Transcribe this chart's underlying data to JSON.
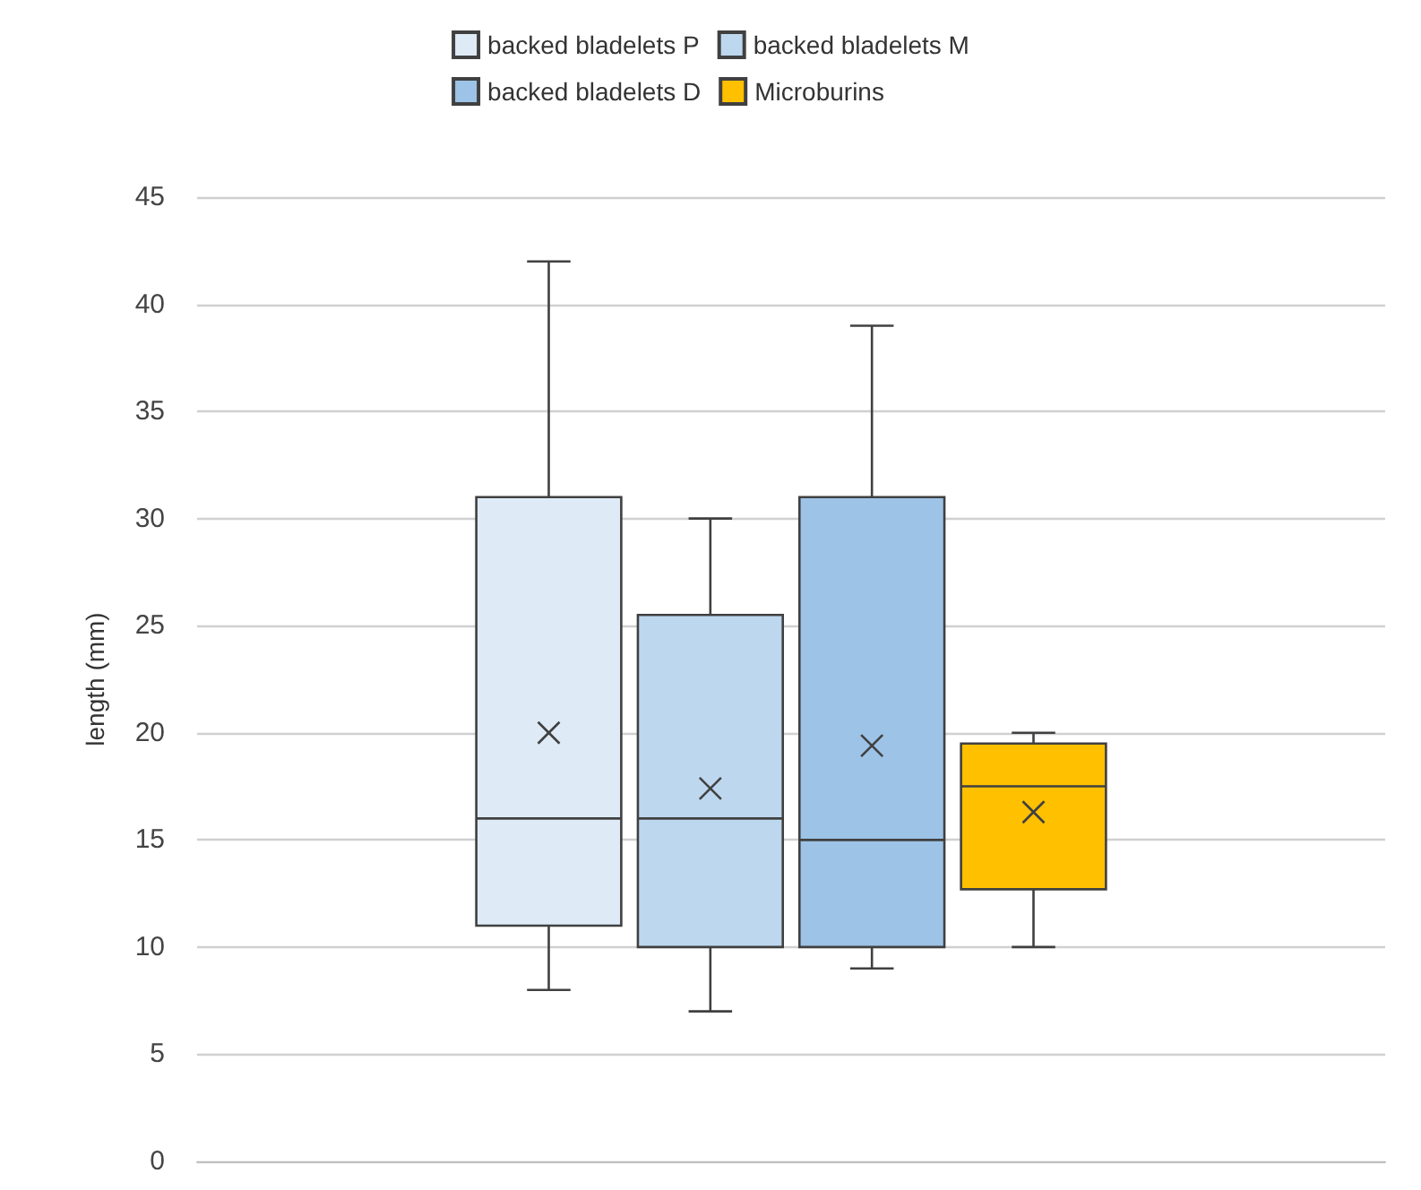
{
  "chart_data": {
    "type": "box",
    "ylabel": "length (mm)",
    "categories": [
      null
    ],
    "ylim": [
      0,
      45
    ],
    "yticks": [
      0,
      5,
      10,
      15,
      20,
      25,
      30,
      35,
      40,
      45
    ],
    "grid": "y",
    "legend": "top",
    "series": [
      {
        "name": "backed bladelets P",
        "color": "#deebf7",
        "boxes": [
          {
            "low": 8,
            "q1": 11,
            "median": 16,
            "q3": 31,
            "high": 42,
            "mean": 20
          }
        ]
      },
      {
        "name": "backed bladelets M",
        "color": "#bdd7ee",
        "boxes": [
          {
            "low": 7,
            "q1": 10,
            "median": 16,
            "q3": 25.5,
            "high": 30,
            "mean": 17.4
          }
        ]
      },
      {
        "name": "backed bladelets D",
        "color": "#9dc3e6",
        "boxes": [
          {
            "low": 9,
            "q1": 10,
            "median": 15,
            "q3": 31,
            "high": 39,
            "mean": 19.4
          }
        ]
      },
      {
        "name": "Microburins",
        "color": "#ffc000",
        "boxes": [
          {
            "low": 10,
            "q1": 12.7,
            "median": 17.5,
            "q3": 19.5,
            "high": 20,
            "mean": 16.3
          }
        ]
      }
    ]
  }
}
